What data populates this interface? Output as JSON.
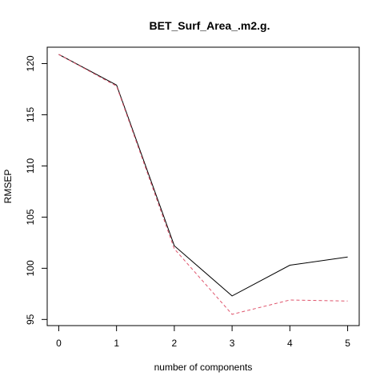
{
  "chart_data": {
    "type": "line",
    "title": "BET_Surf_Area_.m2.g.",
    "xlabel": "number of components",
    "ylabel": "RMSEP",
    "x": [
      0,
      1,
      2,
      3,
      4,
      5
    ],
    "xticks": [
      "0",
      "1",
      "2",
      "3",
      "4",
      "5"
    ],
    "yticks": [
      95,
      100,
      105,
      110,
      115,
      120
    ],
    "xlim": [
      -0.2,
      5.2
    ],
    "ylim": [
      94.4,
      121.6
    ],
    "grid": false,
    "legend": "none",
    "series": [
      {
        "color": "#000000",
        "dash": "solid",
        "values": [
          120.9,
          117.9,
          102.2,
          97.3,
          100.3,
          101.1
        ]
      },
      {
        "color": "#df536b",
        "dash": "dashed",
        "values": [
          120.9,
          117.8,
          101.9,
          95.5,
          96.9,
          96.8
        ]
      }
    ]
  }
}
